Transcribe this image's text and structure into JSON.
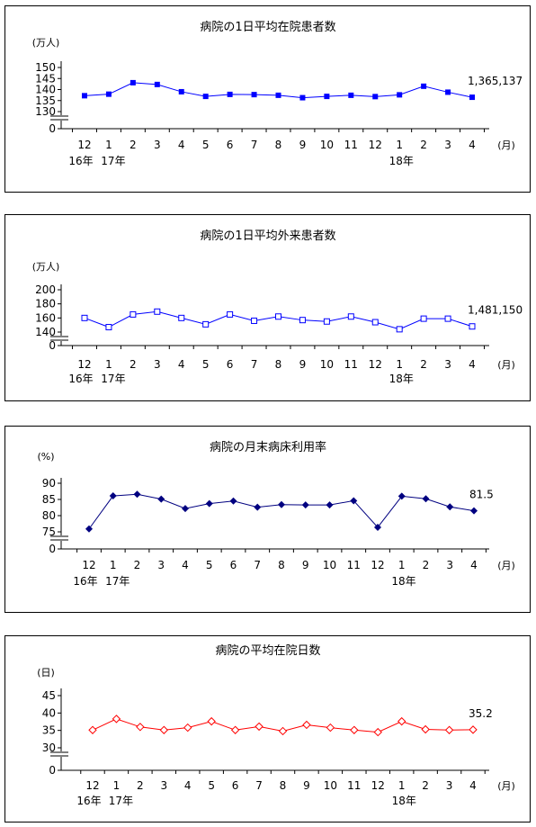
{
  "month_unit": "(月)",
  "year_labels": {
    "y16": "16年",
    "y17": "17年",
    "y18": "18年"
  },
  "chart_data": [
    {
      "type": "line",
      "title": "病院の1日平均在院患者数",
      "unit_label": "(万人)",
      "categories": [
        "12",
        "1",
        "2",
        "3",
        "4",
        "5",
        "6",
        "7",
        "8",
        "9",
        "10",
        "11",
        "12",
        "1",
        "2",
        "3",
        "4"
      ],
      "yticks": [
        "150",
        "145",
        "140",
        "135",
        "130",
        "0"
      ],
      "ylim": [
        130,
        150
      ],
      "axis_break": true,
      "series": [
        {
          "values": [
            137.2,
            137.9,
            143.1,
            142.3,
            139.0,
            136.9,
            137.8,
            137.7,
            137.4,
            136.3,
            136.9,
            137.4,
            136.8,
            137.6,
            141.5,
            138.8,
            136.5
          ],
          "color": "#0000FF",
          "marker": "filled-square"
        }
      ],
      "end_label": "1,365,137"
    },
    {
      "type": "line",
      "title": "病院の1日平均外来患者数",
      "unit_label": "(万人)",
      "categories": [
        "12",
        "1",
        "2",
        "3",
        "4",
        "5",
        "6",
        "7",
        "8",
        "9",
        "10",
        "11",
        "12",
        "1",
        "2",
        "3",
        "4"
      ],
      "yticks": [
        "200",
        "180",
        "160",
        "140",
        "0"
      ],
      "ylim": [
        140,
        200
      ],
      "axis_break": true,
      "series": [
        {
          "values": [
            160,
            147,
            165,
            169,
            160,
            151,
            165,
            156,
            162,
            157,
            155,
            162,
            154,
            144,
            159,
            159,
            148
          ],
          "color": "#0000FF",
          "marker": "hollow-square"
        }
      ],
      "end_label": "1,481,150"
    },
    {
      "type": "line",
      "title": "病院の月末病床利用率",
      "unit_label": "(%)",
      "categories": [
        "12",
        "1",
        "2",
        "3",
        "4",
        "5",
        "6",
        "7",
        "8",
        "9",
        "10",
        "11",
        "12",
        "1",
        "2",
        "3",
        "4"
      ],
      "yticks": [
        "90",
        "85",
        "80",
        "75",
        "0"
      ],
      "ylim": [
        75,
        90
      ],
      "axis_break": true,
      "series": [
        {
          "values": [
            75.9,
            86.1,
            86.6,
            85.1,
            82.2,
            83.7,
            84.5,
            82.6,
            83.4,
            83.3,
            83.3,
            84.6,
            76.4,
            86.0,
            85.2,
            82.7,
            81.5
          ],
          "color": "#000080",
          "marker": "filled-diamond"
        }
      ],
      "end_label": "81.5"
    },
    {
      "type": "line",
      "title": "病院の平均在院日数",
      "unit_label": "(日)",
      "categories": [
        "12",
        "1",
        "2",
        "3",
        "4",
        "5",
        "6",
        "7",
        "8",
        "9",
        "10",
        "11",
        "12",
        "1",
        "2",
        "3",
        "4"
      ],
      "yticks": [
        "45",
        "40",
        "35",
        "30",
        "0"
      ],
      "ylim": [
        30,
        45
      ],
      "axis_break": true,
      "series": [
        {
          "values": [
            35.1,
            38.3,
            36.0,
            35.1,
            35.8,
            37.6,
            35.1,
            36.1,
            34.8,
            36.6,
            35.8,
            35.1,
            34.5,
            37.6,
            35.3,
            35.1,
            35.2
          ],
          "color": "#FF0000",
          "marker": "hollow-diamond"
        }
      ],
      "end_label": "35.2"
    }
  ]
}
